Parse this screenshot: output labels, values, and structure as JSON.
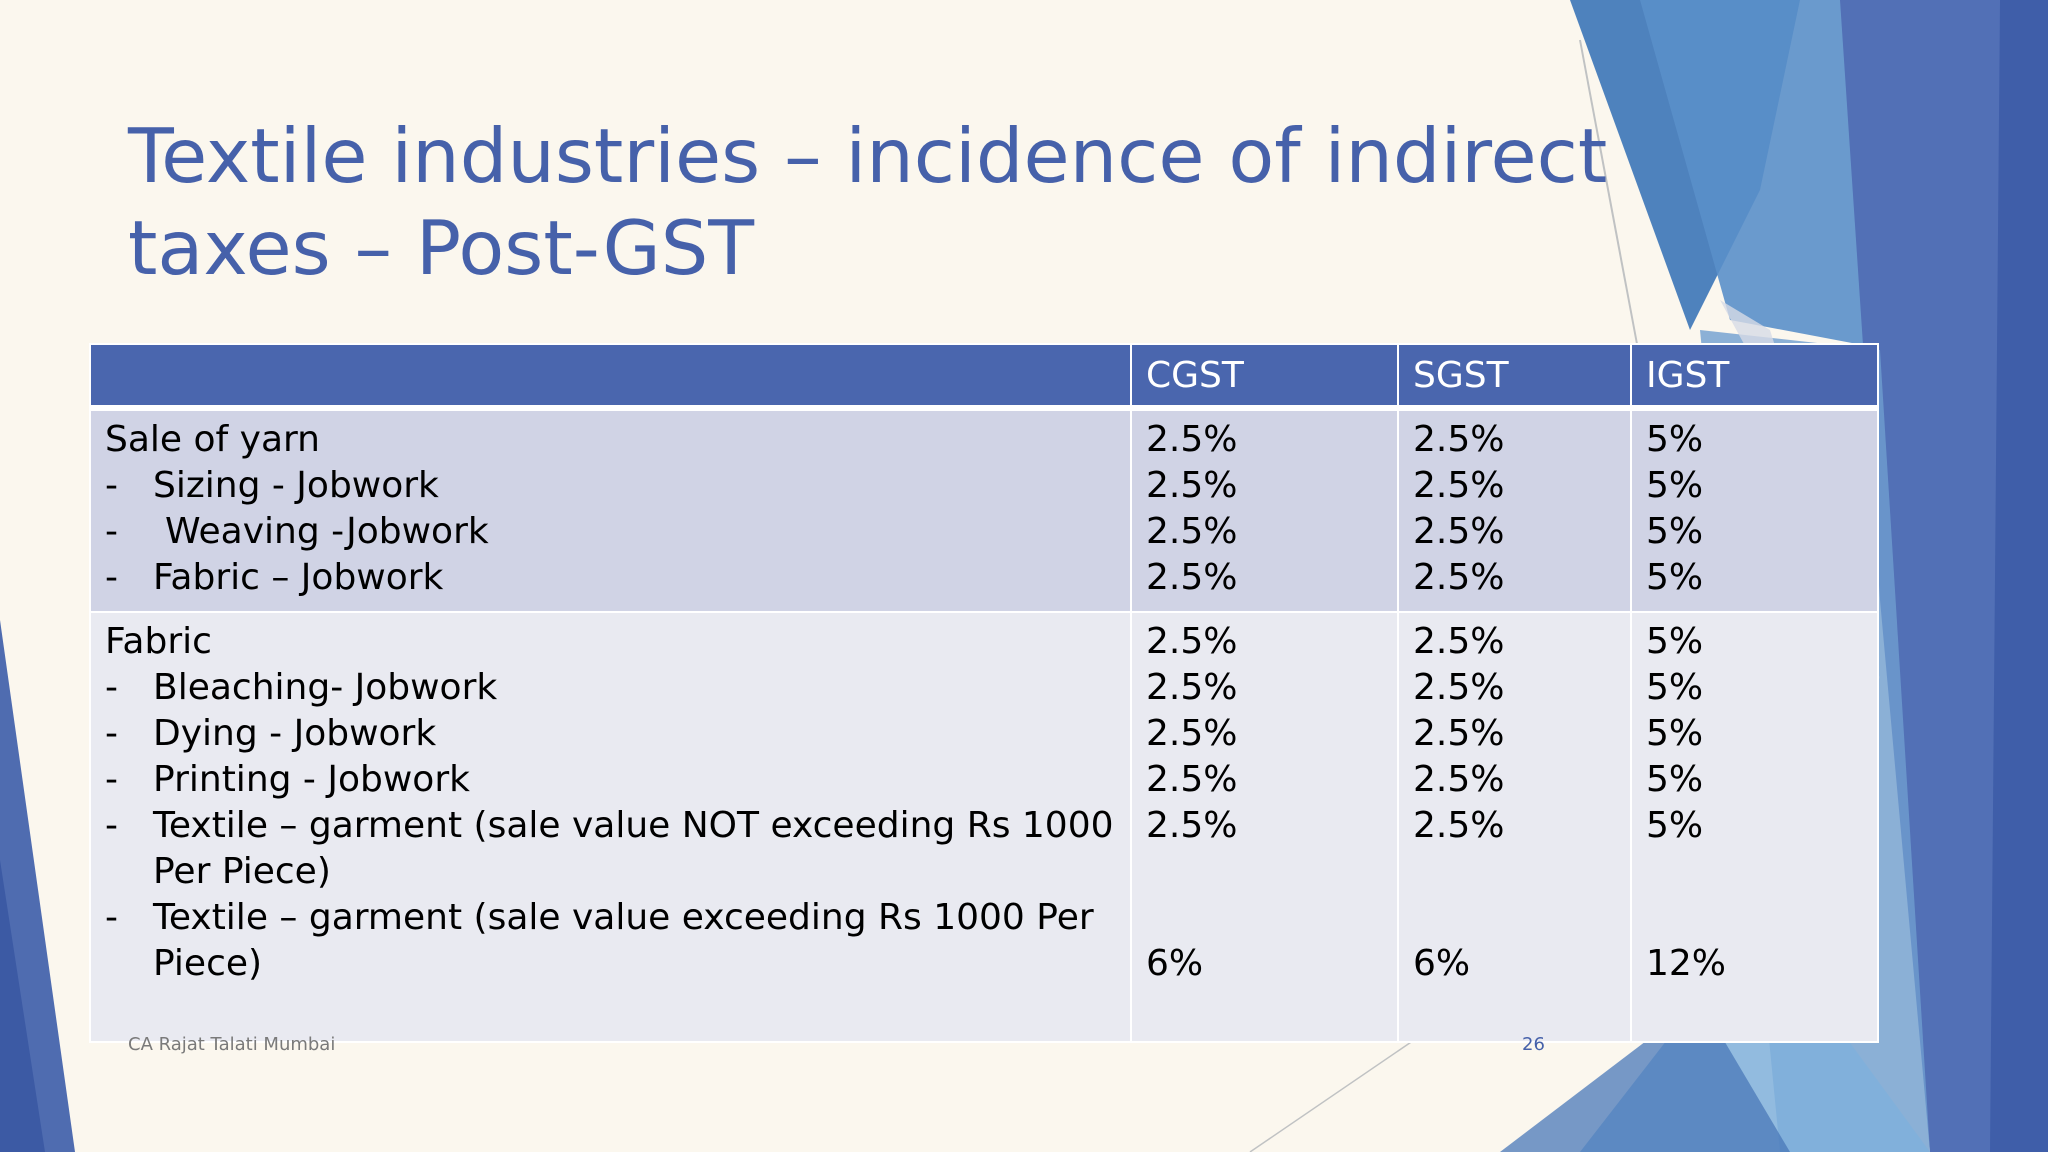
{
  "slide": {
    "title": "Textile industries – incidence of indirect taxes – Post-GST",
    "footer_left": "CA Rajat Talati Mumbai",
    "page_number": "26",
    "colors": {
      "title": "#4661aa",
      "header": "#4a66ae",
      "row1": "#d0d3e5",
      "row2": "#e9eaf1"
    }
  },
  "table": {
    "headers": [
      "",
      "CGST",
      "SGST",
      "IGST"
    ],
    "yarn": {
      "heading": "Sale of yarn",
      "items": [
        {
          "text": "Sizing - Jobwork",
          "cgst": "2.5%",
          "sgst": "2.5%",
          "igst": "5%"
        },
        {
          "text": " Weaving -Jobwork",
          "cgst": "2.5%",
          "sgst": "2.5%",
          "igst": "5%"
        },
        {
          "text": "Fabric – Jobwork",
          "cgst": "2.5%",
          "sgst": "2.5%",
          "igst": "5%"
        }
      ],
      "cgst": "2.5%",
      "sgst": "2.5%",
      "igst": "5%"
    },
    "fabric": {
      "heading": "Fabric",
      "items": [
        {
          "text": "Bleaching- Jobwork",
          "cgst": "2.5%",
          "sgst": "2.5%",
          "igst": "5%"
        },
        {
          "text": "Dying - Jobwork",
          "cgst": "2.5%",
          "sgst": "2.5%",
          "igst": "5%"
        },
        {
          "text": "Printing - Jobwork",
          "cgst": "2.5%",
          "sgst": "2.5%",
          "igst": "5%"
        },
        {
          "text": "Textile – garment (sale value NOT exceeding Rs 1000 Per Piece)",
          "cgst": "2.5%",
          "sgst": "2.5%",
          "igst": "5%"
        },
        {
          "text": "Textile – garment (sale value exceeding Rs 1000 Per Piece)",
          "cgst": "6%",
          "sgst": "6%",
          "igst": "12%"
        }
      ],
      "cgst": "2.5%",
      "sgst": "2.5%",
      "igst": "5%"
    }
  }
}
